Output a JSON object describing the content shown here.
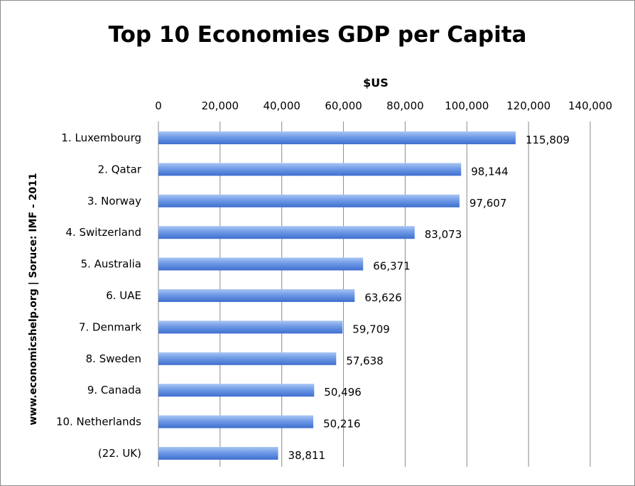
{
  "chart_data": {
    "type": "bar",
    "orientation": "horizontal",
    "title": "Top 10 Economies GDP per Capita",
    "xlabel": "$US",
    "ylabel": "www.economicshelp.org | Soruce: IMF - 2011",
    "xlim": [
      0,
      140000
    ],
    "x_ticks": [
      0,
      20000,
      40000,
      60000,
      80000,
      100000,
      120000,
      140000
    ],
    "x_tick_labels": [
      "0",
      "20,000",
      "40,000",
      "60,000",
      "80,000",
      "100,000",
      "120,000",
      "140,000"
    ],
    "x_axis_position": "top",
    "grid": true,
    "legend": "none",
    "categories": [
      "1. Luxembourg",
      "2. Qatar",
      "3. Norway",
      "4. Switzerland",
      "5. Australia",
      "6. UAE",
      "7.  Denmark",
      "8.  Sweden",
      "9.  Canada",
      "10. Netherlands",
      "(22. UK)"
    ],
    "values": [
      115809,
      98144,
      97607,
      83073,
      66371,
      63626,
      59709,
      57638,
      50496,
      50216,
      38811
    ],
    "data_labels": [
      "115,809",
      "98,144",
      "97,607",
      "83,073",
      "66,371",
      "63,626",
      "59,709",
      "57,638",
      "50,496",
      "50,216",
      "38,811"
    ],
    "colors": {
      "bar_light": "#a9c6f3",
      "bar_mid": "#6f9ae6",
      "bar_dark": "#3f6fce",
      "grid": "#8a8a8a"
    }
  }
}
